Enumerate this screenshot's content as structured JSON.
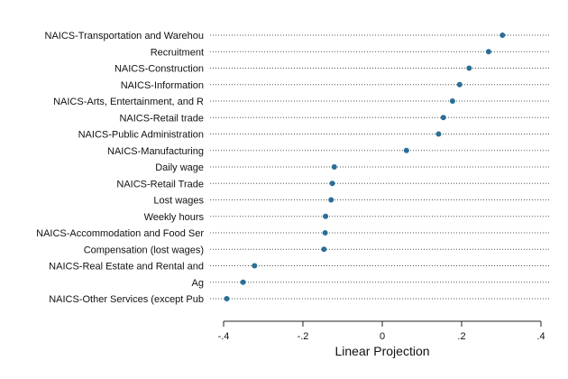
{
  "chart_data": {
    "type": "scatter",
    "xlabel": "Linear Projection",
    "ylabel": "",
    "xlim": [
      -0.4,
      0.4
    ],
    "xticks": [
      -0.4,
      -0.2,
      0,
      0.2,
      0.4
    ],
    "xtick_labels": [
      "-.4",
      "-.2",
      "0",
      ".2",
      ".4"
    ],
    "grid": false,
    "categories": [
      "NAICS-Transportation and Warehou",
      "Recruitment",
      "NAICS-Construction",
      "NAICS-Information",
      "NAICS-Arts, Entertainment, and R",
      "NAICS-Retail trade",
      "NAICS-Public Administration",
      "NAICS-Manufacturing",
      "Daily wage",
      "NAICS-Retail Trade",
      "Lost wages",
      "Weekly hours",
      "NAICS-Accommodation and Food Ser",
      "Compensation (lost wages)",
      "NAICS-Real Estate and Rental and",
      "Ag",
      "NAICS-Other Services (except Pub"
    ],
    "values": [
      0.303,
      0.268,
      0.219,
      0.195,
      0.177,
      0.154,
      0.142,
      0.061,
      -0.121,
      -0.126,
      -0.129,
      -0.143,
      -0.144,
      -0.147,
      -0.322,
      -0.351,
      -0.392
    ],
    "marker_color": "#2a6f97",
    "dotline_color": "#555555"
  }
}
